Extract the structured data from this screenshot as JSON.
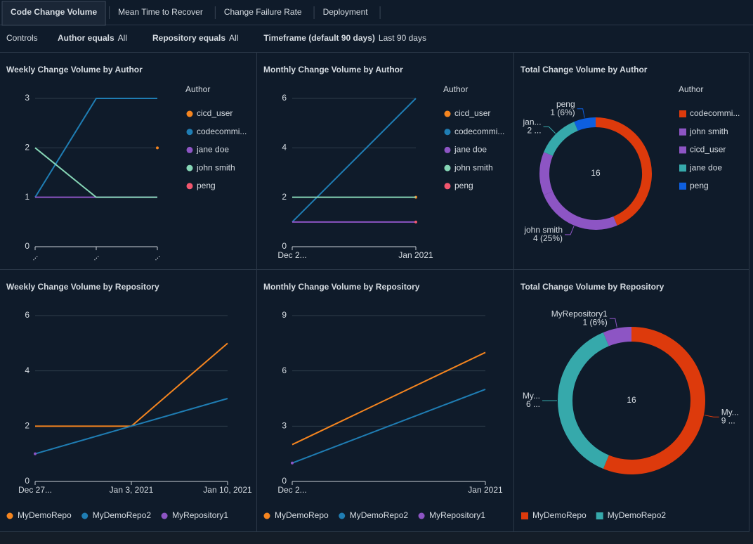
{
  "tabs": {
    "items": [
      "Code Change Volume",
      "Mean Time to Recover",
      "Change Failure Rate",
      "Deployment"
    ],
    "active": 0
  },
  "controls": {
    "title": "Controls",
    "filters": [
      {
        "label": "Author equals",
        "value": "All"
      },
      {
        "label": "Repository equals",
        "value": "All"
      },
      {
        "label": "Timeframe (default 90 days)",
        "value": "Last 90 days"
      }
    ]
  },
  "chart_data": [
    {
      "type": "line",
      "title": "Weekly Change Volume by Author",
      "categories": [
        "...",
        "...",
        "..."
      ],
      "x_labels_rotated": true,
      "ylim": [
        0,
        3
      ],
      "yticks": [
        0,
        1,
        2,
        3
      ],
      "grid": true,
      "legend": "right",
      "legend_title": "Author",
      "series": [
        {
          "name": "cicd_user",
          "color": "#f5851f",
          "values": [
            null,
            null,
            2
          ]
        },
        {
          "name": "codecommi...",
          "color": "#1f7db3",
          "values": [
            1,
            3,
            3
          ]
        },
        {
          "name": "jane doe",
          "color": "#8d55c4",
          "values": [
            1,
            1,
            1
          ]
        },
        {
          "name": "john smith",
          "color": "#86d6b6",
          "values": [
            2,
            1,
            1
          ]
        },
        {
          "name": "peng",
          "color": "#f2566e",
          "values": [
            null,
            null,
            null
          ]
        }
      ]
    },
    {
      "type": "line",
      "title": "Monthly Change Volume by Author",
      "categories": [
        "Dec 2...",
        "Jan 2021"
      ],
      "ylim": [
        0,
        6
      ],
      "yticks": [
        0,
        2,
        4,
        6
      ],
      "grid": true,
      "legend": "right",
      "legend_title": "Author",
      "series": [
        {
          "name": "cicd_user",
          "color": "#f5851f",
          "values": [
            null,
            2
          ]
        },
        {
          "name": "codecommi...",
          "color": "#1f7db3",
          "values": [
            1,
            6
          ]
        },
        {
          "name": "jane doe",
          "color": "#8d55c4",
          "values": [
            1,
            1
          ]
        },
        {
          "name": "john smith",
          "color": "#86d6b6",
          "values": [
            2,
            2
          ]
        },
        {
          "name": "peng",
          "color": "#f2566e",
          "values": [
            null,
            1
          ]
        }
      ]
    },
    {
      "type": "donut",
      "title": "Total Change Volume by Author",
      "categories": [
        "codecommi...",
        "john smith",
        "cicd_user",
        "jane doe",
        "peng"
      ],
      "values": [
        7,
        4,
        2,
        2,
        1
      ],
      "colors": [
        "#dd3a0c",
        "#8d55c4",
        "#8d55c4",
        "#36a9ab",
        "#0e5fe0"
      ],
      "total": 16,
      "slice_labels": [
        null,
        {
          "value": "4 (25%)"
        },
        null,
        {
          "name": "jan...",
          "value": "2 ..."
        },
        {
          "value": "1 (6%)"
        }
      ],
      "in_legend": [
        true,
        true,
        true,
        true,
        true
      ],
      "legend": "right",
      "legend_title": "Author"
    },
    {
      "type": "line",
      "title": "Weekly Change Volume by Repository",
      "categories": [
        "Dec 27...",
        "Jan 3, 2021",
        "Jan 10, 2021"
      ],
      "ylim": [
        0,
        6
      ],
      "yticks": [
        0,
        2,
        4,
        6
      ],
      "grid": true,
      "legend": "bottom",
      "series": [
        {
          "name": "MyDemoRepo",
          "color": "#f5851f",
          "values": [
            2,
            2,
            5
          ]
        },
        {
          "name": "MyDemoRepo2",
          "color": "#1f7db3",
          "values": [
            1,
            2,
            3
          ]
        },
        {
          "name": "MyRepository1",
          "color": "#8d55c4",
          "values": [
            1,
            null,
            null
          ]
        }
      ]
    },
    {
      "type": "line",
      "title": "Monthly Change Volume by Repository",
      "categories": [
        "Dec 2...",
        "Jan 2021"
      ],
      "ylim": [
        0,
        9
      ],
      "yticks": [
        0,
        3,
        6,
        9
      ],
      "grid": true,
      "legend": "bottom",
      "series": [
        {
          "name": "MyDemoRepo",
          "color": "#f5851f",
          "values": [
            2,
            7
          ]
        },
        {
          "name": "MyDemoRepo2",
          "color": "#1f7db3",
          "values": [
            1,
            5
          ]
        },
        {
          "name": "MyRepository1",
          "color": "#8d55c4",
          "values": [
            1,
            null
          ]
        }
      ]
    },
    {
      "type": "donut",
      "title": "Total Change Volume by Repository",
      "categories": [
        "MyDemoRepo",
        "MyDemoRepo2",
        "MyRepository1"
      ],
      "values": [
        9,
        6,
        1
      ],
      "colors": [
        "#dd3a0c",
        "#36a9ab",
        "#8d55c4"
      ],
      "total": 16,
      "slice_labels": [
        {
          "name": "My...",
          "value": "9 ..."
        },
        {
          "name": "My...",
          "value": "6 ..."
        },
        {
          "value": "1 (6%)"
        }
      ],
      "in_legend": [
        true,
        true,
        false
      ],
      "legend": "bottom"
    }
  ]
}
